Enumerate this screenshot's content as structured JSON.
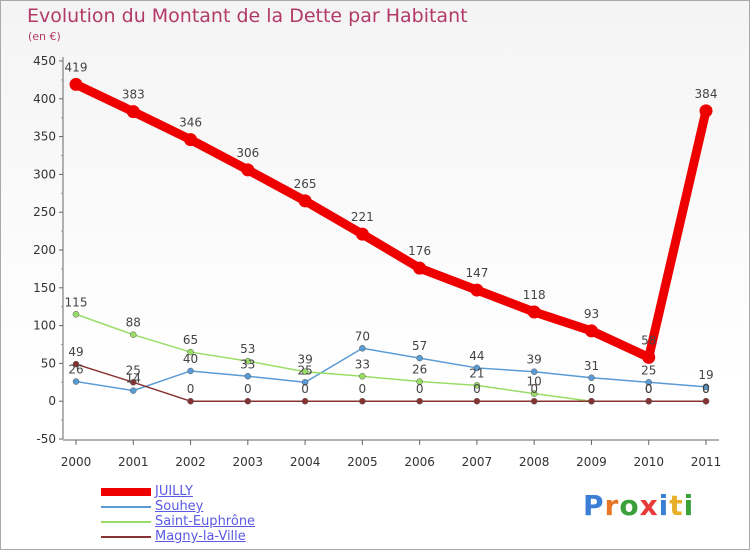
{
  "header": {
    "title": "Evolution du Montant de la Dette par Habitant",
    "unit": "(en €)"
  },
  "logo": {
    "letters": [
      {
        "ch": "P",
        "color": "#3a7fd5"
      },
      {
        "ch": "r",
        "color": "#e8772a"
      },
      {
        "ch": "o",
        "color": "#3aa03a"
      },
      {
        "ch": "x",
        "color": "#e83a3a"
      },
      {
        "ch": "i",
        "color": "#3a7fd5"
      },
      {
        "ch": "t",
        "color": "#e8b02a"
      },
      {
        "ch": "i",
        "color": "#3aa03a"
      }
    ]
  },
  "chart_data": {
    "type": "line",
    "title": "Evolution du Montant de la Dette par Habitant",
    "ylabel": "(en €)",
    "xlabel": "",
    "ylim": [
      -50,
      450
    ],
    "yticks": [
      -50,
      0,
      50,
      100,
      150,
      200,
      250,
      300,
      350,
      400,
      450
    ],
    "categories": [
      "2000",
      "2001",
      "2002",
      "2003",
      "2004",
      "2005",
      "2006",
      "2007",
      "2008",
      "2009",
      "2010",
      "2011"
    ],
    "grid": false,
    "legend_position": "bottom-left",
    "series": [
      {
        "name": "JUILLY",
        "color": "#ee0000",
        "emphasis": true,
        "values": [
          419,
          383,
          346,
          306,
          265,
          221,
          176,
          147,
          118,
          93,
          58,
          384
        ]
      },
      {
        "name": "Souhey",
        "color": "#5b9bd5",
        "values": [
          26,
          14,
          40,
          33,
          25,
          70,
          57,
          44,
          39,
          31,
          25,
          19
        ]
      },
      {
        "name": "Saint-Euphrône",
        "color": "#99dd66",
        "values": [
          115,
          88,
          65,
          53,
          39,
          33,
          26,
          21,
          10,
          0,
          0,
          0
        ]
      },
      {
        "name": "Magny-la-Ville",
        "color": "#883333",
        "values": [
          49,
          25,
          0,
          0,
          0,
          0,
          0,
          0,
          0,
          0,
          0,
          0
        ]
      }
    ]
  }
}
